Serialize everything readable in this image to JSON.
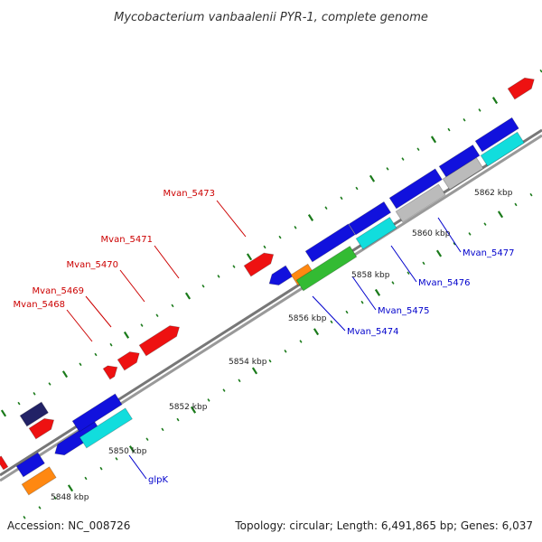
{
  "title": "Mycobacterium vanbaalenii PYR-1, complete genome",
  "footer": {
    "accession": "Accession: NC_008726",
    "stats": "Topology: circular; Length: 6,491,865 bp; Genes: 6,037"
  },
  "colors": {
    "backbone": "#888888",
    "tick": "#1a7a1a",
    "forward_label": "#cc0000",
    "reverse_label": "#0000cc",
    "red": "#ee1111",
    "blue": "#1111dd",
    "cyan": "#11dddd",
    "gray": "#bbbbbb",
    "green": "#33bb33",
    "orange": "#ff8811",
    "navy": "#222266"
  },
  "scale": {
    "unit": "kbp",
    "major_ticks": [
      {
        "kbp": 5848,
        "label": "5848 kbp"
      },
      {
        "kbp": 5850,
        "label": "5850 kbp"
      },
      {
        "kbp": 5852,
        "label": "5852 kbp"
      },
      {
        "kbp": 5854,
        "label": "5854 kbp"
      },
      {
        "kbp": 5856,
        "label": "5856 kbp"
      },
      {
        "kbp": 5858,
        "label": "5858 kbp"
      },
      {
        "kbp": 5860,
        "label": "5860 kbp"
      },
      {
        "kbp": 5862,
        "label": "5862 kbp"
      }
    ]
  },
  "gene_labels": {
    "forward": [
      "Mvan_5473",
      "Mvan_5471",
      "Mvan_5470",
      "Mvan_5469",
      "Mvan_5468"
    ],
    "reverse": [
      "Mvan_5477",
      "Mvan_5476",
      "Mvan_5475",
      "Mvan_5474",
      "glpK"
    ]
  }
}
